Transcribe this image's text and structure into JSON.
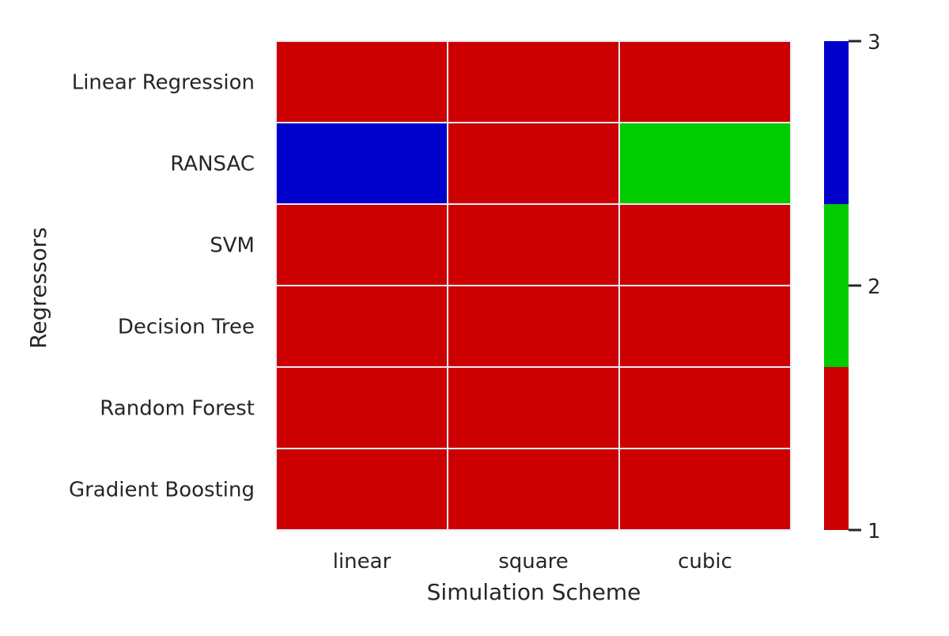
{
  "chart_data": {
    "type": "heatmap",
    "title": "",
    "xlabel": "Simulation Scheme",
    "ylabel": "Regressors",
    "x_categories": [
      "linear",
      "square",
      "cubic"
    ],
    "y_categories": [
      "Linear Regression",
      "RANSAC",
      "SVM",
      "Decision Tree",
      "Random Forest",
      "Gradient Boosting"
    ],
    "values": [
      [
        1,
        1,
        1
      ],
      [
        3,
        1,
        2
      ],
      [
        1,
        1,
        1
      ],
      [
        1,
        1,
        1
      ],
      [
        1,
        1,
        1
      ],
      [
        1,
        1,
        1
      ]
    ],
    "colorbar": {
      "range": [
        1,
        3
      ],
      "ticks": [
        1,
        2,
        3
      ],
      "levels": [
        {
          "value": 1,
          "color": "#cc0000"
        },
        {
          "value": 2,
          "color": "#00cc00"
        },
        {
          "value": 3,
          "color": "#0000cc"
        }
      ]
    },
    "grid": false,
    "cell_separator_color": "#eaeaf2"
  }
}
